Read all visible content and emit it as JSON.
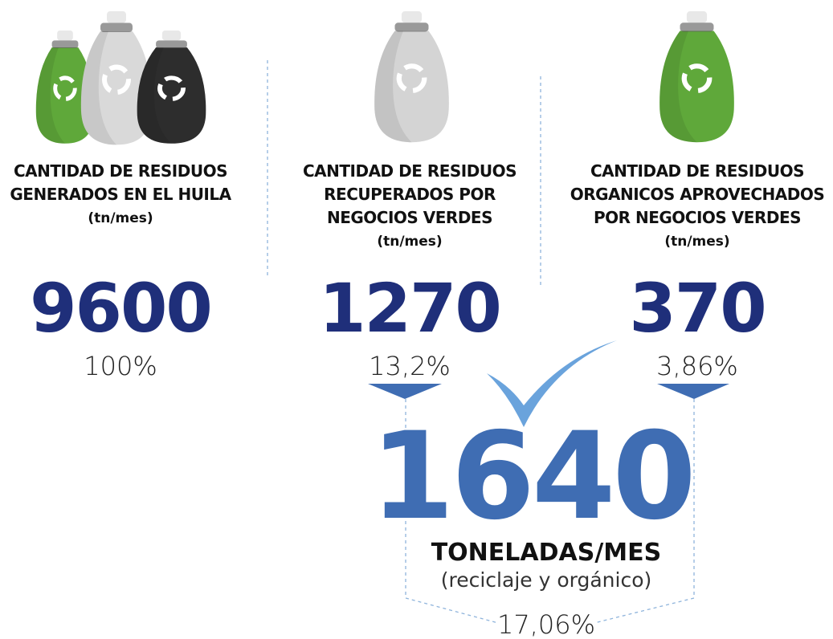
{
  "columns": [
    {
      "label_lines": [
        "CANTIDAD DE RESIDUOS",
        "GENERADOS EN EL HUILA"
      ],
      "unit": "(tn/mes)",
      "value": "9600",
      "percent": "100%"
    },
    {
      "label_lines": [
        "CANTIDAD DE RESIDUOS",
        "RECUPERADOS POR",
        "NEGOCIOS VERDES"
      ],
      "unit": "(tn/mes)",
      "value": "1270",
      "percent": "13,2%"
    },
    {
      "label_lines": [
        "CANTIDAD DE RESIDUOS",
        "ORGANICOS APROVECHADOS",
        "POR NEGOCIOS VERDES"
      ],
      "unit": "(tn/mes)",
      "value": "370",
      "percent": "3,86%"
    }
  ],
  "total": {
    "value": "1640",
    "unit": "TONELADAS/MES",
    "note": "(reciclaje y orgánico)",
    "percent": "17,06%"
  }
}
